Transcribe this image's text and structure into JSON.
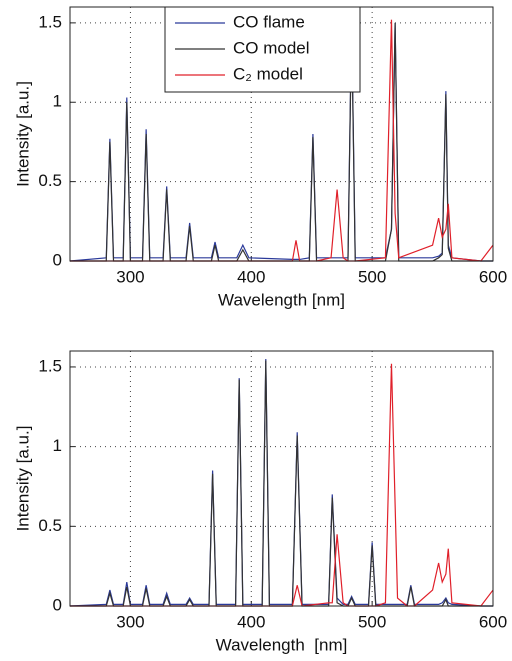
{
  "chart_data": [
    {
      "type": "line",
      "xlabel": "Wavelength [nm]",
      "ylabel": "Intensity [a.u.]",
      "legend": "top-center",
      "xlim": [
        250,
        600
      ],
      "xticks": [
        300,
        400,
        500,
        600
      ],
      "ylim": [
        0,
        1.6
      ],
      "yticks": [
        0,
        0.5,
        1,
        1.5
      ],
      "grid": true,
      "x": [
        250,
        280,
        283,
        286,
        294,
        297,
        300,
        310,
        313,
        316,
        327,
        330,
        333,
        346,
        349,
        352,
        367,
        370,
        373,
        388,
        393,
        398,
        434,
        437,
        440,
        448,
        451,
        454,
        466,
        471,
        476,
        480,
        483,
        486,
        511,
        516,
        519,
        522,
        550,
        555,
        558,
        561,
        563,
        566,
        590,
        600
      ],
      "series": [
        {
          "name": "CO flame",
          "color": "#2b3a9a",
          "values": [
            0,
            0.02,
            0.77,
            0.02,
            0.02,
            1.03,
            0.02,
            0.02,
            0.83,
            0.02,
            0.02,
            0.47,
            0.02,
            0.02,
            0.24,
            0.02,
            0.02,
            0.12,
            0.02,
            0.02,
            0.1,
            0.02,
            0.01,
            0.01,
            0.01,
            0.02,
            0.8,
            0.02,
            0.02,
            0.02,
            0.02,
            0.02,
            1.53,
            0.02,
            0.02,
            0.2,
            1.5,
            0.02,
            0.02,
            0.03,
            0.05,
            1.07,
            0.1,
            0.02,
            0,
            0
          ]
        },
        {
          "name": "CO model",
          "color": "#333333",
          "values": [
            0,
            0,
            0.75,
            0,
            0,
            1.0,
            0,
            0,
            0.8,
            0,
            0,
            0.45,
            0,
            0,
            0.22,
            0,
            0,
            0.1,
            0,
            0,
            0.07,
            0,
            0,
            0,
            0,
            0,
            0.78,
            0,
            0,
            0,
            0,
            0,
            1.5,
            0,
            0,
            0.2,
            1.5,
            0,
            0,
            0.02,
            0.04,
            1.05,
            0.08,
            0,
            0,
            0
          ]
        },
        {
          "name": "C₂ model",
          "color": "#e0202a",
          "values": [
            0,
            0,
            0,
            0,
            0,
            0,
            0,
            0,
            0,
            0,
            0,
            0,
            0,
            0,
            0,
            0,
            0,
            0,
            0,
            0,
            0,
            0,
            0,
            0.13,
            0,
            0,
            0,
            0,
            0.02,
            0.45,
            0.02,
            0,
            0,
            0,
            0.02,
            1.52,
            0.3,
            0.02,
            0.1,
            0.27,
            0.15,
            0.2,
            0.36,
            0.02,
            0,
            0.1
          ]
        }
      ]
    },
    {
      "type": "line",
      "xlabel": "Wavelength  [nm]",
      "ylabel": "Intensity [a.u.]",
      "xlim": [
        250,
        600
      ],
      "xticks": [
        300,
        400,
        500,
        600
      ],
      "ylim": [
        0,
        1.6
      ],
      "yticks": [
        0,
        0.5,
        1,
        1.5
      ],
      "grid": true,
      "x": [
        250,
        280,
        283,
        286,
        294,
        297,
        300,
        310,
        313,
        316,
        327,
        330,
        333,
        346,
        349,
        352,
        365,
        368,
        371,
        387,
        390,
        393,
        409,
        412,
        415,
        434,
        438,
        442,
        464,
        467,
        471,
        476,
        480,
        483,
        486,
        497,
        500,
        503,
        511,
        516,
        521,
        529,
        532,
        535,
        550,
        555,
        558,
        561,
        563,
        566,
        590,
        600
      ],
      "series": [
        {
          "color": "#2b3a9a",
          "values": [
            0,
            0.01,
            0.1,
            0.01,
            0.01,
            0.15,
            0.01,
            0.01,
            0.13,
            0.01,
            0.01,
            0.08,
            0.01,
            0.01,
            0.05,
            0.01,
            0.01,
            0.85,
            0.01,
            0.01,
            1.43,
            0.01,
            0.01,
            1.55,
            0.01,
            0.01,
            1.09,
            0.01,
            0.01,
            0.7,
            0.05,
            0.01,
            0.01,
            0.06,
            0.01,
            0.01,
            0.4,
            0.01,
            0.01,
            0.01,
            0.01,
            0.01,
            0.13,
            0.01,
            0.01,
            0.01,
            0.02,
            0.05,
            0.02,
            0.01,
            0,
            0
          ]
        },
        {
          "color": "#333333",
          "values": [
            0,
            0,
            0.08,
            0,
            0,
            0.12,
            0,
            0,
            0.11,
            0,
            0,
            0.06,
            0,
            0,
            0.04,
            0,
            0,
            0.83,
            0,
            0,
            1.42,
            0,
            0,
            1.54,
            0,
            0,
            1.07,
            0,
            0,
            0.68,
            0.02,
            0,
            0,
            0.05,
            0,
            0,
            0.38,
            0,
            0,
            0,
            0,
            0,
            0.12,
            0,
            0,
            0,
            0,
            0.04,
            0,
            0,
            0,
            0
          ]
        },
        {
          "color": "#e0202a",
          "values": [
            0,
            0,
            0,
            0,
            0,
            0,
            0,
            0,
            0,
            0,
            0,
            0,
            0,
            0,
            0,
            0,
            0,
            0,
            0,
            0,
            0,
            0,
            0,
            0,
            0,
            0,
            0.13,
            0,
            0.02,
            0.02,
            0.45,
            0.02,
            0,
            0,
            0,
            0,
            0,
            0,
            0.02,
            1.52,
            0.05,
            0,
            0,
            0,
            0.1,
            0.27,
            0.15,
            0.2,
            0.36,
            0.02,
            0,
            0.1
          ]
        }
      ]
    }
  ]
}
